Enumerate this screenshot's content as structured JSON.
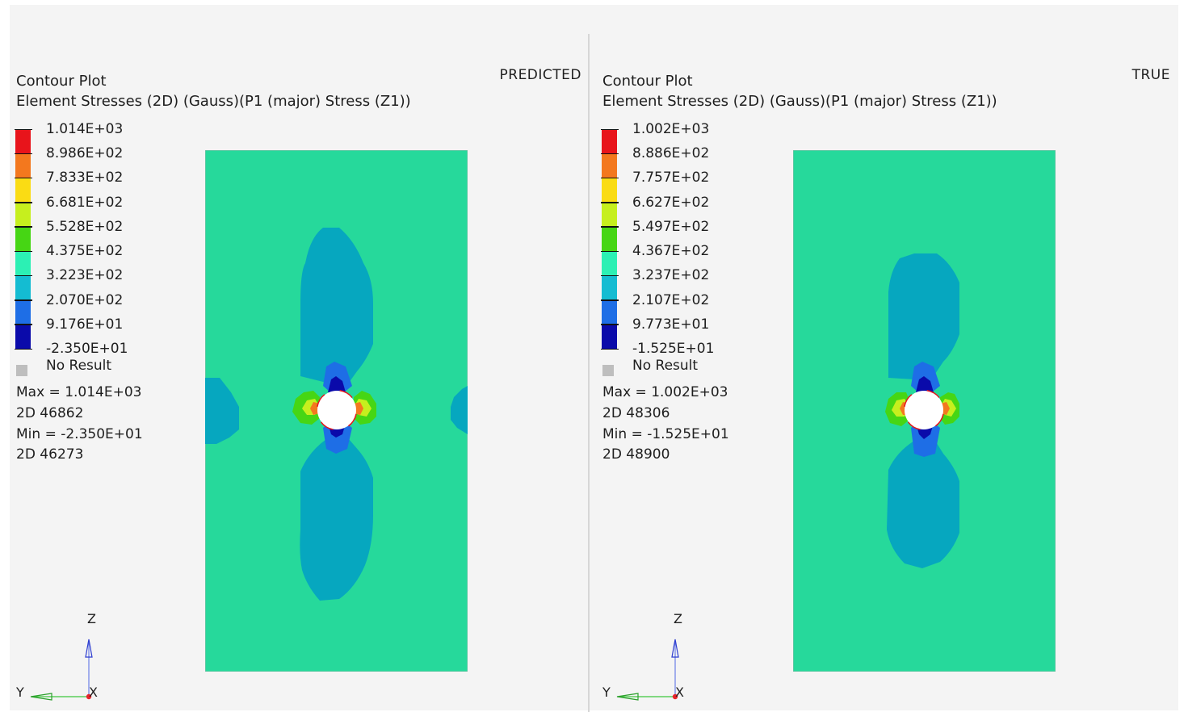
{
  "viewports": [
    {
      "tag": "PREDICTED",
      "title": "Contour Plot",
      "subtitle": "Element Stresses (2D) (Gauss)(P1 (major) Stress (Z1))",
      "legend": {
        "values": [
          "1.014E+03",
          "8.986E+02",
          "7.833E+02",
          "6.681E+02",
          "5.528E+02",
          "4.375E+02",
          "3.223E+02",
          "2.070E+02",
          "9.176E+01",
          "-2.350E+01"
        ],
        "colors": [
          "#e8141b",
          "#f3781e",
          "#fadc14",
          "#c6ef1e",
          "#46d614",
          "#2cf0b4",
          "#14bcd2",
          "#1e6ee6",
          "#0a0aaa"
        ],
        "no_result": "No Result"
      },
      "max_line": "Max =  1.014E+03",
      "max_elem": "2D 46862",
      "min_line": "Min = -2.350E+01",
      "min_elem": "2D 46273",
      "axes": {
        "z": "Z",
        "y": "Y",
        "x": "X"
      }
    },
    {
      "tag": "TRUE",
      "title": "Contour Plot",
      "subtitle": "Element Stresses (2D) (Gauss)(P1 (major) Stress (Z1))",
      "legend": {
        "values": [
          "1.002E+03",
          "8.886E+02",
          "7.757E+02",
          "6.627E+02",
          "5.497E+02",
          "4.367E+02",
          "3.237E+02",
          "2.107E+02",
          "9.773E+01",
          "-1.525E+01"
        ],
        "colors": [
          "#e8141b",
          "#f3781e",
          "#fadc14",
          "#c6ef1e",
          "#46d614",
          "#2cf0b4",
          "#14bcd2",
          "#1e6ee6",
          "#0a0aaa"
        ],
        "no_result": "No Result"
      },
      "max_line": "Max =  1.002E+03",
      "max_elem": "2D 48306",
      "min_line": "Min = -1.525E+01",
      "min_elem": "2D 48900",
      "axes": {
        "z": "Z",
        "y": "Y",
        "x": "X"
      }
    }
  ],
  "colors": {
    "background_field": "#26d99b",
    "low_lobe": "#06a7bf",
    "mid_blue": "#1e6ee6",
    "deep_blue": "#0a0aaa",
    "hole": "#ffffff"
  }
}
